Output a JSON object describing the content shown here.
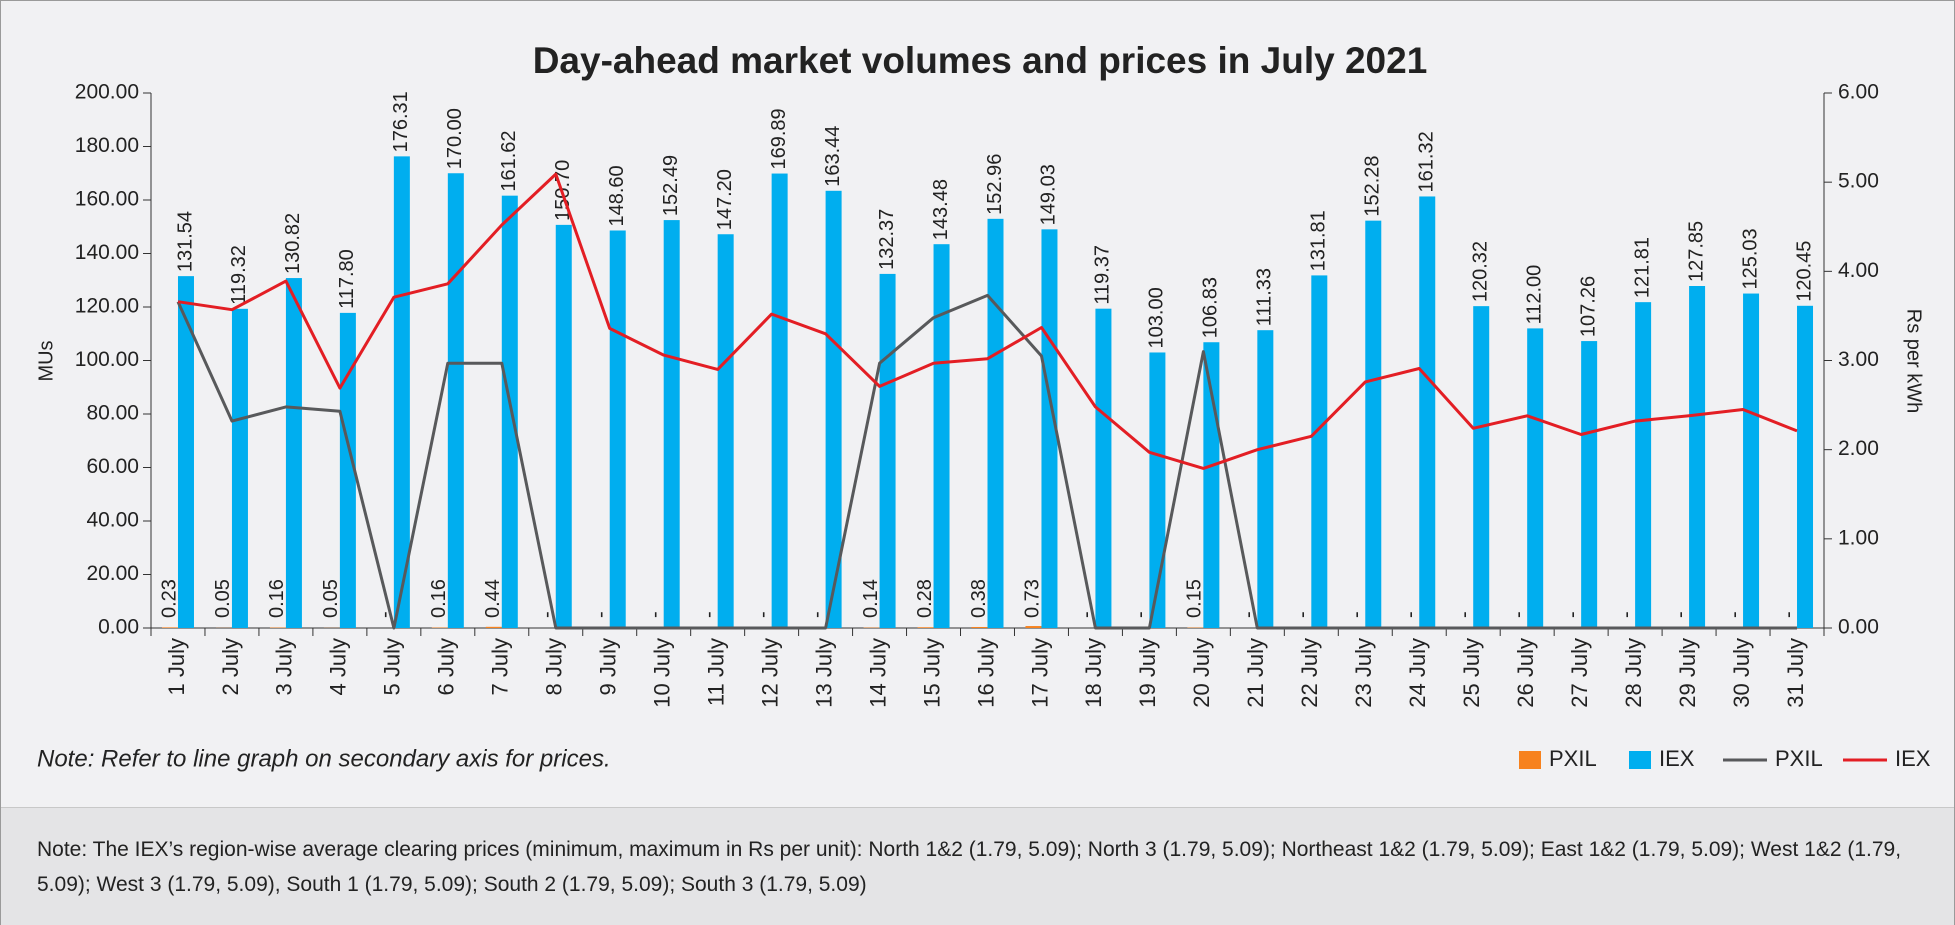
{
  "chart_data": {
    "type": "bar",
    "title": "Day-ahead market volumes and prices in July 2021",
    "y_label": "MUs",
    "y2_label": "Rs per kWh",
    "annotation": "Note: Refer to line graph on secondary axis for prices.",
    "categories": [
      "1 July",
      "2 July",
      "3 July",
      "4 July",
      "5 July",
      "6 July",
      "7 July",
      "8 July",
      "9 July",
      "10 July",
      "11 July",
      "12 July",
      "13 July",
      "14 July",
      "15 July",
      "16 July",
      "17 July",
      "18 July",
      "19 July",
      "20 July",
      "21 July",
      "22 July",
      "23 July",
      "24 July",
      "25 July",
      "26 July",
      "27 July",
      "28 July",
      "29 July",
      "30 July",
      "31 July"
    ],
    "ylim": [
      0,
      200
    ],
    "yticks": [
      {
        "value": 0,
        "label": "0.00"
      },
      {
        "value": 20,
        "label": "20.00"
      },
      {
        "value": 40,
        "label": "40.00"
      },
      {
        "value": 60,
        "label": "60.00"
      },
      {
        "value": 80,
        "label": "80.00"
      },
      {
        "value": 100,
        "label": "100.00"
      },
      {
        "value": 120,
        "label": "120.00"
      },
      {
        "value": 140,
        "label": "140.00"
      },
      {
        "value": 160,
        "label": "160.00"
      },
      {
        "value": 180,
        "label": "180.00"
      },
      {
        "value": 200,
        "label": "200.00"
      }
    ],
    "y2lim": [
      0,
      6
    ],
    "y2ticks": [
      {
        "value": 0,
        "label": "0.00"
      },
      {
        "value": 1,
        "label": "1.00"
      },
      {
        "value": 2,
        "label": "2.00"
      },
      {
        "value": 3,
        "label": "3.00"
      },
      {
        "value": 4,
        "label": "4.00"
      },
      {
        "value": 5,
        "label": "5.00"
      },
      {
        "value": 6,
        "label": "6.00"
      }
    ],
    "series": [
      {
        "name": "PXIL",
        "type": "bar",
        "color": "#f7821e",
        "values": [
          0.23,
          0.05,
          0.16,
          0.05,
          null,
          0.16,
          0.44,
          null,
          null,
          null,
          null,
          null,
          null,
          0.14,
          0.28,
          0.38,
          0.73,
          null,
          null,
          0.15,
          null,
          null,
          null,
          null,
          null,
          null,
          null,
          null,
          null,
          null,
          null
        ],
        "value_labels": [
          "0.23",
          "0.05",
          "0.16",
          "0.05",
          "-",
          "0.16",
          "0.44",
          "-",
          "-",
          "-",
          "-",
          "-",
          "-",
          "0.14",
          "0.28",
          "0.38",
          "0.73",
          "-",
          "-",
          "0.15",
          "-",
          "-",
          "-",
          "-",
          "-",
          "-",
          "-",
          "-",
          "-",
          "-",
          "-"
        ]
      },
      {
        "name": "IEX",
        "type": "bar",
        "color": "#00aeef",
        "values": [
          131.54,
          119.32,
          130.82,
          117.8,
          176.31,
          170,
          161.62,
          150.7,
          148.6,
          152.49,
          147.2,
          169.89,
          163.44,
          132.37,
          143.48,
          152.96,
          149.03,
          119.37,
          103,
          106.83,
          111.33,
          131.81,
          152.28,
          161.32,
          120.32,
          112,
          107.26,
          121.81,
          127.85,
          125.03,
          120.45
        ],
        "value_labels": [
          "131.54",
          "119.32",
          "130.82",
          "117.80",
          "176.31",
          "170.00",
          "161.62",
          "150.70",
          "148.60",
          "152.49",
          "147.20",
          "169.89",
          "163.44",
          "132.37",
          "143.48",
          "152.96",
          "149.03",
          "119.37",
          "103.00",
          "106.83",
          "111.33",
          "131.81",
          "152.28",
          "161.32",
          "120.32",
          "112.00",
          "107.26",
          "121.81",
          "127.85",
          "125.03",
          "120.45"
        ]
      },
      {
        "name": "PXIL",
        "type": "line",
        "axis": "y2",
        "color": "#58595b",
        "values": [
          3.66,
          2.32,
          2.48,
          2.43,
          0,
          2.97,
          2.97,
          0,
          0,
          0,
          0,
          0,
          0,
          2.97,
          3.48,
          3.73,
          3.05,
          0,
          0,
          3.1,
          0,
          0,
          0,
          0,
          0,
          0,
          0,
          0,
          0,
          0,
          0
        ]
      },
      {
        "name": "IEX",
        "type": "line",
        "axis": "y2",
        "color": "#e31e24",
        "values": [
          3.66,
          3.57,
          3.89,
          2.69,
          3.71,
          3.86,
          4.52,
          5.09,
          3.36,
          3.06,
          2.9,
          3.52,
          3.3,
          2.71,
          2.97,
          3.02,
          3.37,
          2.48,
          1.97,
          1.79,
          2,
          2.15,
          2.76,
          2.91,
          2.24,
          2.38,
          2.17,
          2.32,
          2.38,
          2.45,
          2.21
        ]
      }
    ],
    "footnote": "Note: The IEX’s region-wise average clearing prices (minimum, maximum in Rs per unit):  North 1&2 (1.79, 5.09); North 3 (1.79, 5.09); Northeast 1&2 (1.79, 5.09); East 1&2 (1.79, 5.09); West 1&2 (1.79, 5.09); West 3 (1.79, 5.09), South 1 (1.79, 5.09); South 2 (1.79, 5.09); South 3 (1.79, 5.09)"
  }
}
